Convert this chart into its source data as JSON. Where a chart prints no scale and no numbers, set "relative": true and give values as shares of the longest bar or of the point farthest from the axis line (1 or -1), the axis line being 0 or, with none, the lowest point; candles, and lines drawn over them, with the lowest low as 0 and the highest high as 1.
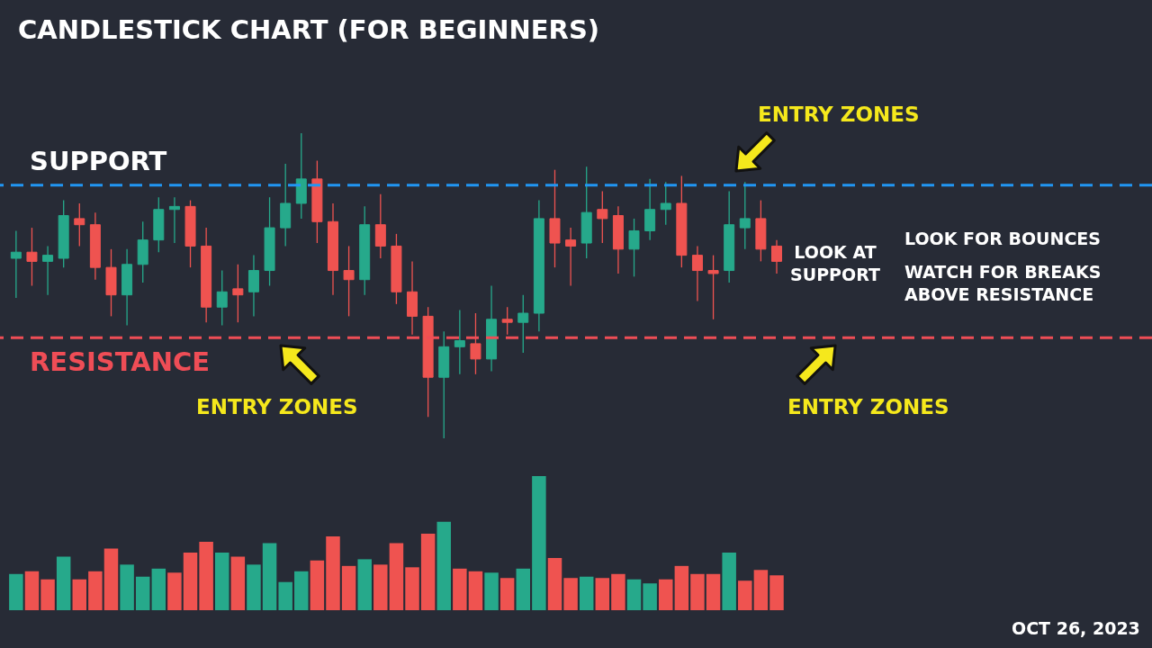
{
  "chart_data": [
    {
      "type": "candlestick",
      "title": "CANDLESTICK CHART (FOR BEGINNERS)",
      "relative": true,
      "categories": [
        null,
        null,
        null,
        null,
        null,
        null,
        null,
        null,
        null,
        null,
        null,
        null,
        null,
        null,
        null,
        null,
        null,
        null,
        null,
        null,
        null,
        null,
        null,
        null,
        null,
        null,
        null,
        null,
        null,
        null,
        null,
        null,
        null,
        null,
        null,
        null,
        null,
        null,
        null,
        null,
        null,
        null,
        null,
        null,
        null,
        null,
        null,
        null,
        null
      ],
      "ohlc": [
        [
          0.59,
          0.68,
          0.46,
          0.61
        ],
        [
          0.61,
          0.69,
          0.5,
          0.58
        ],
        [
          0.58,
          0.63,
          0.47,
          0.6
        ],
        [
          0.59,
          0.78,
          0.56,
          0.73
        ],
        [
          0.72,
          0.77,
          0.63,
          0.7
        ],
        [
          0.7,
          0.74,
          0.52,
          0.56
        ],
        [
          0.56,
          0.62,
          0.4,
          0.47
        ],
        [
          0.47,
          0.62,
          0.37,
          0.57
        ],
        [
          0.57,
          0.71,
          0.51,
          0.65
        ],
        [
          0.65,
          0.79,
          0.61,
          0.75
        ],
        [
          0.75,
          0.79,
          0.64,
          0.76
        ],
        [
          0.76,
          0.78,
          0.56,
          0.63
        ],
        [
          0.63,
          0.69,
          0.38,
          0.43
        ],
        [
          0.43,
          0.55,
          0.37,
          0.48
        ],
        [
          0.49,
          0.57,
          0.38,
          0.47
        ],
        [
          0.48,
          0.6,
          0.4,
          0.55
        ],
        [
          0.55,
          0.79,
          0.5,
          0.69
        ],
        [
          0.69,
          0.9,
          0.63,
          0.77
        ],
        [
          0.77,
          1,
          0.72,
          0.85
        ],
        [
          0.85,
          0.91,
          0.64,
          0.71
        ],
        [
          0.71,
          0.77,
          0.47,
          0.55
        ],
        [
          0.55,
          0.63,
          0.4,
          0.52
        ],
        [
          0.52,
          0.76,
          0.47,
          0.7
        ],
        [
          0.7,
          0.8,
          0.59,
          0.63
        ],
        [
          0.63,
          0.67,
          0.44,
          0.48
        ],
        [
          0.48,
          0.58,
          0.34,
          0.4
        ],
        [
          0.4,
          0.43,
          0.07,
          0.2
        ],
        [
          0.2,
          0.35,
          0,
          0.3
        ],
        [
          0.3,
          0.42,
          0.21,
          0.32
        ],
        [
          0.31,
          0.41,
          0.21,
          0.26
        ],
        [
          0.26,
          0.5,
          0.22,
          0.39
        ],
        [
          0.39,
          0.43,
          0.34,
          0.38
        ],
        [
          0.38,
          0.47,
          0.28,
          0.41
        ],
        [
          0.41,
          0.78,
          0.35,
          0.72
        ],
        [
          0.72,
          0.88,
          0.56,
          0.64
        ],
        [
          0.65,
          0.69,
          0.5,
          0.63
        ],
        [
          0.64,
          0.89,
          0.59,
          0.74
        ],
        [
          0.75,
          0.81,
          0.64,
          0.72
        ],
        [
          0.73,
          0.76,
          0.54,
          0.62
        ],
        [
          0.62,
          0.72,
          0.53,
          0.68
        ],
        [
          0.68,
          0.85,
          0.65,
          0.75
        ],
        [
          0.75,
          0.84,
          0.7,
          0.77
        ],
        [
          0.77,
          0.86,
          0.56,
          0.6
        ],
        [
          0.6,
          0.63,
          0.45,
          0.55
        ],
        [
          0.55,
          0.6,
          0.39,
          0.54
        ],
        [
          0.55,
          0.81,
          0.51,
          0.7
        ],
        [
          0.69,
          0.84,
          0.62,
          0.72
        ],
        [
          0.72,
          0.78,
          0.58,
          0.62
        ],
        [
          0.63,
          0.65,
          0.54,
          0.58
        ]
      ],
      "colors": [
        "#26a98b",
        "#ef5350",
        "#26a98b",
        "#26a98b",
        "#ef5350",
        "#ef5350",
        "#ef5350",
        "#26a98b",
        "#26a98b",
        "#26a98b",
        "#26a98b",
        "#ef5350",
        "#ef5350",
        "#26a98b",
        "#ef5350",
        "#26a98b",
        "#26a98b",
        "#26a98b",
        "#26a98b",
        "#ef5350",
        "#ef5350",
        "#ef5350",
        "#26a98b",
        "#ef5350",
        "#ef5350",
        "#ef5350",
        "#ef5350",
        "#26a98b",
        "#26a98b",
        "#ef5350",
        "#26a98b",
        "#ef5350",
        "#26a98b",
        "#26a98b",
        "#ef5350",
        "#ef5350",
        "#26a98b",
        "#ef5350",
        "#ef5350",
        "#26a98b",
        "#26a98b",
        "#26a98b",
        "#ef5350",
        "#ef5350",
        "#ef5350",
        "#26a98b",
        "#26a98b",
        "#ef5350",
        "#ef5350"
      ],
      "ref_lines": [
        {
          "axis": "y",
          "value": 0.83,
          "label": "SUPPORT",
          "color": "#2196f3",
          "line_style": "dashed"
        },
        {
          "axis": "y",
          "value": 0.33,
          "label": "RESISTANCE",
          "color": "#ef4d56",
          "line_style": "dashed"
        }
      ],
      "annotations": [
        "ENTRY ZONES",
        "ENTRY ZONES",
        "ENTRY ZONES",
        "LOOK AT SUPPORT",
        "LOOK FOR BOUNCES",
        "WATCH FOR BREAKS ABOVE RESISTANCE",
        "OCT 26, 2023"
      ]
    },
    {
      "type": "bar",
      "relative": true,
      "categories": [
        null,
        null,
        null,
        null,
        null,
        null,
        null,
        null,
        null,
        null,
        null,
        null,
        null,
        null,
        null,
        null,
        null,
        null,
        null,
        null,
        null,
        null,
        null,
        null,
        null,
        null,
        null,
        null,
        null,
        null,
        null,
        null,
        null,
        null,
        null,
        null,
        null,
        null,
        null,
        null,
        null,
        null,
        null,
        null,
        null,
        null,
        null,
        null,
        null
      ],
      "values": [
        0.27,
        0.29,
        0.23,
        0.4,
        0.23,
        0.29,
        0.46,
        0.34,
        0.25,
        0.31,
        0.28,
        0.43,
        0.51,
        0.43,
        0.4,
        0.34,
        0.5,
        0.21,
        0.29,
        0.37,
        0.55,
        0.33,
        0.38,
        0.34,
        0.5,
        0.32,
        0.57,
        0.66,
        0.31,
        0.29,
        0.28,
        0.24,
        0.31,
        1,
        0.39,
        0.24,
        0.25,
        0.24,
        0.27,
        0.23,
        0.2,
        0.23,
        0.33,
        0.27,
        0.27,
        0.43,
        0.22,
        0.3,
        0.26
      ],
      "colors": [
        "#26a98b",
        "#ef5350",
        "#ef5350",
        "#26a98b",
        "#ef5350",
        "#ef5350",
        "#ef5350",
        "#26a98b",
        "#26a98b",
        "#26a98b",
        "#ef5350",
        "#ef5350",
        "#ef5350",
        "#26a98b",
        "#ef5350",
        "#26a98b",
        "#26a98b",
        "#26a98b",
        "#26a98b",
        "#ef5350",
        "#ef5350",
        "#ef5350",
        "#26a98b",
        "#ef5350",
        "#ef5350",
        "#ef5350",
        "#ef5350",
        "#26a98b",
        "#ef5350",
        "#ef5350",
        "#26a98b",
        "#ef5350",
        "#26a98b",
        "#26a98b",
        "#ef5350",
        "#ef5350",
        "#26a98b",
        "#ef5350",
        "#ef5350",
        "#26a98b",
        "#26a98b",
        "#ef5350",
        "#ef5350",
        "#ef5350",
        "#ef5350",
        "#26a98b",
        "#ef5350",
        "#ef5350",
        "#ef5350"
      ]
    }
  ]
}
